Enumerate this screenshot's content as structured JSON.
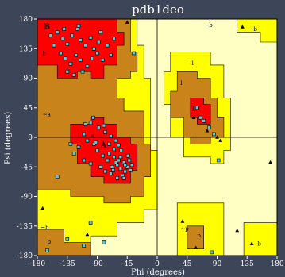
{
  "chart_data": {
    "type": "scatter",
    "title": "pdb1deo",
    "xlabel": "Phi (degrees)",
    "ylabel": "Psi (degrees)",
    "xlim": [
      -180,
      180
    ],
    "ylim": [
      -180,
      180
    ],
    "x_ticks": [
      -180,
      -135,
      -90,
      -45,
      0,
      45,
      90,
      135,
      180
    ],
    "y_ticks": [
      -180,
      -135,
      -90,
      -45,
      0,
      45,
      90,
      135,
      180
    ],
    "x_tick_labels": [
      "-180",
      "-135",
      "-90",
      "-45",
      "0",
      "45",
      "90",
      "135",
      "180"
    ],
    "y_tick_labels": [
      "-180",
      "-135",
      "-90",
      "-45",
      "0",
      "45",
      "90",
      "135",
      "180"
    ],
    "zero_lines": true,
    "colors": {
      "core": "#ff0000",
      "allowed": "#c8841a",
      "generous": "#ffff00",
      "disallowed": "#ffffc4",
      "point": "#5bc8d8",
      "glycine": "#000000"
    },
    "region_labels": [
      {
        "text": "B",
        "x": -170,
        "y": 165,
        "big": true
      },
      {
        "text": "b",
        "x": -172,
        "y": 125
      },
      {
        "text": "-b",
        "x": 75,
        "y": 168
      },
      {
        "text": "-b",
        "x": 142,
        "y": 162
      },
      {
        "text": "~l",
        "x": 45,
        "y": 110
      },
      {
        "text": "l",
        "x": 35,
        "y": 80
      },
      {
        "text": "L",
        "x": 52,
        "y": 40,
        "big": true
      },
      {
        "text": "~a",
        "x": -172,
        "y": 32
      },
      {
        "text": "a",
        "x": -100,
        "y": 0
      },
      {
        "text": "A",
        "x": -85,
        "y": -15,
        "big": true
      },
      {
        "text": "~b",
        "x": -175,
        "y": -140
      },
      {
        "text": "b",
        "x": -165,
        "y": -162
      },
      {
        "text": "~p",
        "x": 35,
        "y": -142
      },
      {
        "text": "p",
        "x": 60,
        "y": -152
      },
      {
        "text": "-b",
        "x": 148,
        "y": -165
      }
    ],
    "series": [
      {
        "marker": "square",
        "points": [
          [
            -150,
            160
          ],
          [
            -142,
            150
          ],
          [
            -135,
            142
          ],
          [
            -128,
            155
          ],
          [
            -120,
            165
          ],
          [
            -115,
            148
          ],
          [
            -108,
            140
          ],
          [
            -100,
            152
          ],
          [
            -95,
            135
          ],
          [
            -88,
            145
          ],
          [
            -145,
            128
          ],
          [
            -138,
            120
          ],
          [
            -130,
            112
          ],
          [
            -122,
            125
          ],
          [
            -115,
            118
          ],
          [
            -105,
            108
          ],
          [
            -98,
            120
          ],
          [
            -90,
            128
          ],
          [
            -82,
            118
          ],
          [
            -75,
            140
          ],
          [
            -70,
            125
          ],
          [
            -135,
            100
          ],
          [
            -125,
            95
          ],
          [
            -112,
            100
          ],
          [
            -155,
            140
          ],
          [
            -160,
            155
          ],
          [
            -118,
            170
          ],
          [
            -85,
            160
          ],
          [
            -65,
            150
          ],
          [
            -140,
            165
          ],
          [
            -100,
            22
          ],
          [
            -88,
            15
          ],
          [
            -78,
            8
          ],
          [
            -70,
            2
          ],
          [
            -62,
            -5
          ],
          [
            -58,
            -12
          ],
          [
            -65,
            -18
          ],
          [
            -72,
            -25
          ],
          [
            -55,
            -30
          ],
          [
            -50,
            -38
          ],
          [
            -60,
            -42
          ],
          [
            -45,
            -45
          ],
          [
            -55,
            -48
          ],
          [
            -48,
            -52
          ],
          [
            -62,
            -38
          ],
          [
            -68,
            -45
          ],
          [
            -42,
            -35
          ],
          [
            -40,
            -50
          ],
          [
            -52,
            -58
          ],
          [
            -58,
            -35
          ],
          [
            -65,
            -30
          ],
          [
            -75,
            -35
          ],
          [
            -82,
            -28
          ],
          [
            -90,
            -20
          ],
          [
            -95,
            -10
          ],
          [
            -105,
            -5
          ],
          [
            -110,
            5
          ],
          [
            -118,
            -15
          ],
          [
            -125,
            -25
          ],
          [
            -85,
            -45
          ],
          [
            -78,
            -52
          ],
          [
            -70,
            -55
          ],
          [
            -60,
            -62
          ],
          [
            -66,
            -50
          ],
          [
            -48,
            -42
          ],
          [
            -44,
            -28
          ],
          [
            -110,
            -35
          ],
          [
            -100,
            -40
          ],
          [
            -92,
            -8
          ],
          [
            -80,
            18
          ],
          [
            -96,
            30
          ],
          [
            -108,
            20
          ],
          [
            -130,
            -10
          ],
          [
            -72,
            -10
          ],
          [
            -54,
            -20
          ],
          [
            -50,
            -62
          ],
          [
            -38,
            -42
          ],
          [
            60,
            45
          ],
          [
            70,
            25
          ],
          [
            78,
            15
          ],
          [
            85,
            5
          ],
          [
            65,
            30
          ],
          [
            92,
            -35
          ],
          [
            -135,
            -155
          ],
          [
            -100,
            -130
          ],
          [
            -80,
            -160
          ],
          [
            -110,
            -165
          ],
          [
            -165,
            -172
          ],
          [
            82,
            -175
          ],
          [
            -35,
            128
          ],
          [
            -150,
            -60
          ]
        ]
      },
      {
        "marker": "triangle",
        "points": [
          [
            128,
            168
          ],
          [
            55,
            30
          ],
          [
            75,
            10
          ],
          [
            90,
            0
          ],
          [
            170,
            -38
          ],
          [
            142,
            -162
          ],
          [
            58,
            -168
          ],
          [
            38,
            -128
          ],
          [
            120,
            -142
          ],
          [
            -172,
            -108
          ],
          [
            -105,
            -148
          ],
          [
            -45,
            175
          ],
          [
            95,
            -5
          ]
        ]
      }
    ]
  }
}
